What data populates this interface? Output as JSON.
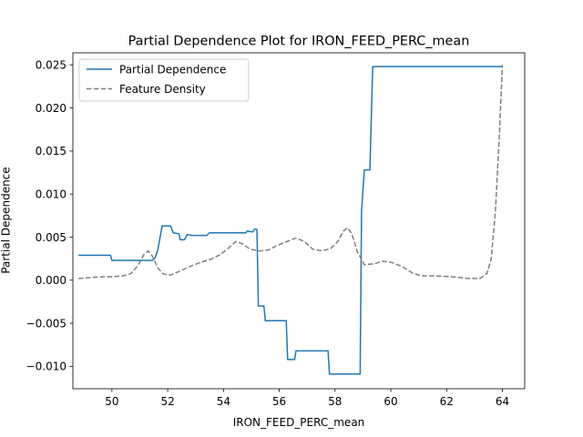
{
  "chart_data": {
    "type": "line",
    "title": "Partial Dependence Plot for IRON_FEED_PERC_mean",
    "xlabel": "IRON_FEED_PERC_mean",
    "ylabel": "Partial Dependence",
    "xlim": [
      48.6,
      64.8
    ],
    "ylim": [
      -0.0126,
      0.0264
    ],
    "xticks": [
      50,
      52,
      54,
      56,
      58,
      60,
      62,
      64
    ],
    "xtick_labels": [
      "50",
      "52",
      "54",
      "56",
      "58",
      "60",
      "62",
      "64"
    ],
    "yticks": [
      -0.01,
      -0.005,
      0.0,
      0.005,
      0.01,
      0.015,
      0.02,
      0.025
    ],
    "ytick_labels": [
      "−0.010",
      "−0.005",
      "0.000",
      "0.005",
      "0.010",
      "0.015",
      "0.020",
      "0.025"
    ],
    "grid": false,
    "legend_position": "upper-left",
    "series": [
      {
        "name": "Partial Dependence",
        "color": "#1f77b4",
        "style": "solid",
        "points": [
          [
            48.8,
            0.0029
          ],
          [
            49.7,
            0.0029
          ],
          [
            49.95,
            0.0029
          ],
          [
            50.0,
            0.0023
          ],
          [
            51.45,
            0.0023
          ],
          [
            51.55,
            0.0026
          ],
          [
            51.65,
            0.0036
          ],
          [
            51.8,
            0.0063
          ],
          [
            52.1,
            0.0063
          ],
          [
            52.2,
            0.0055
          ],
          [
            52.4,
            0.0054
          ],
          [
            52.45,
            0.0047
          ],
          [
            52.6,
            0.0047
          ],
          [
            52.7,
            0.0053
          ],
          [
            52.9,
            0.0052
          ],
          [
            53.4,
            0.0052
          ],
          [
            53.5,
            0.0055
          ],
          [
            54.8,
            0.0055
          ],
          [
            54.85,
            0.0057
          ],
          [
            55.05,
            0.0056
          ],
          [
            55.1,
            0.0059
          ],
          [
            55.2,
            0.0059
          ],
          [
            55.25,
            -0.003
          ],
          [
            55.45,
            -0.003
          ],
          [
            55.5,
            -0.0047
          ],
          [
            56.25,
            -0.0047
          ],
          [
            56.3,
            -0.0092
          ],
          [
            56.55,
            -0.0092
          ],
          [
            56.6,
            -0.0082
          ],
          [
            57.75,
            -0.0082
          ],
          [
            57.8,
            -0.0109
          ],
          [
            58.9,
            -0.0109
          ],
          [
            58.95,
            0.008
          ],
          [
            59.05,
            0.0128
          ],
          [
            59.25,
            0.0128
          ],
          [
            59.35,
            0.0248
          ],
          [
            64.0,
            0.0248
          ]
        ]
      },
      {
        "name": "Feature Density",
        "color": "#7f7f7f",
        "style": "dashed",
        "points": [
          [
            48.8,
            0.0002
          ],
          [
            49.2,
            0.0003
          ],
          [
            49.6,
            0.0004
          ],
          [
            50.0,
            0.0004
          ],
          [
            50.4,
            0.0005
          ],
          [
            50.7,
            0.0008
          ],
          [
            50.95,
            0.0018
          ],
          [
            51.15,
            0.003
          ],
          [
            51.3,
            0.0034
          ],
          [
            51.45,
            0.0028
          ],
          [
            51.65,
            0.0014
          ],
          [
            51.85,
            0.0007
          ],
          [
            52.1,
            0.0006
          ],
          [
            52.4,
            0.001
          ],
          [
            52.8,
            0.0016
          ],
          [
            53.2,
            0.0021
          ],
          [
            53.6,
            0.0025
          ],
          [
            53.9,
            0.003
          ],
          [
            54.2,
            0.0038
          ],
          [
            54.45,
            0.0045
          ],
          [
            54.7,
            0.0042
          ],
          [
            54.95,
            0.0036
          ],
          [
            55.3,
            0.0034
          ],
          [
            55.6,
            0.0035
          ],
          [
            55.9,
            0.004
          ],
          [
            56.2,
            0.0044
          ],
          [
            56.6,
            0.0049
          ],
          [
            56.9,
            0.0045
          ],
          [
            57.2,
            0.0036
          ],
          [
            57.55,
            0.0034
          ],
          [
            57.85,
            0.0037
          ],
          [
            58.1,
            0.0045
          ],
          [
            58.3,
            0.0057
          ],
          [
            58.45,
            0.0061
          ],
          [
            58.6,
            0.0054
          ],
          [
            58.8,
            0.0033
          ],
          [
            59.05,
            0.0018
          ],
          [
            59.4,
            0.0019
          ],
          [
            59.7,
            0.0022
          ],
          [
            60.0,
            0.0021
          ],
          [
            60.4,
            0.0016
          ],
          [
            60.8,
            0.0008
          ],
          [
            61.1,
            0.0005
          ],
          [
            61.6,
            0.0005
          ],
          [
            62.2,
            0.0004
          ],
          [
            62.8,
            0.0002
          ],
          [
            63.2,
            0.0002
          ],
          [
            63.45,
            0.0008
          ],
          [
            63.6,
            0.0025
          ],
          [
            63.75,
            0.008
          ],
          [
            63.88,
            0.016
          ],
          [
            64.0,
            0.025
          ]
        ]
      }
    ]
  }
}
